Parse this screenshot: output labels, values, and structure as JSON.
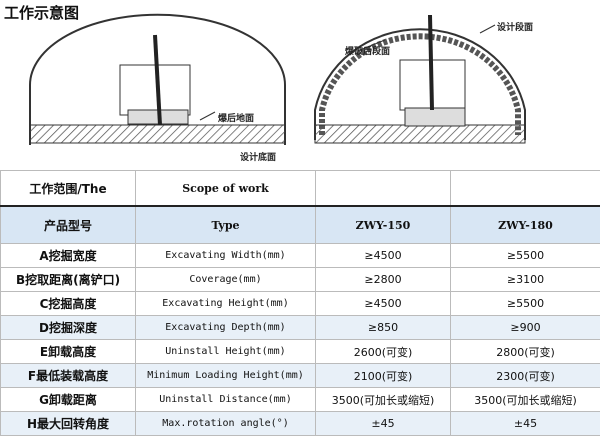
{
  "title": "工作示意图",
  "diagram": {
    "left_labels": [
      "爆后地面",
      "设计底面"
    ],
    "right_labels": [
      "设计段面",
      "爆破后段面"
    ]
  },
  "table": {
    "caption": [
      "工作范围/The",
      "Scope of work"
    ],
    "header": [
      "产品型号",
      "Type",
      "ZWY-150",
      "ZWY-180"
    ],
    "rows": [
      [
        "A挖掘宽度",
        "Excavating  Width(mm)",
        "≥4500",
        "≥5500"
      ],
      [
        "B挖取距离(离铲口)",
        "Coverage(mm)",
        "≥2800",
        "≥3100"
      ],
      [
        "C挖掘高度",
        "Excavating  Height(mm)",
        "≥4500",
        "≥5500"
      ],
      [
        "D挖掘深度",
        "Excavating  Depth(mm)",
        "≥850",
        "≥900"
      ],
      [
        "E卸载高度",
        "Uninstall  Height(mm)",
        "2600(可变)",
        "2800(可变)"
      ],
      [
        "F最低装载高度",
        "Minimum Loading Height(mm)",
        "2100(可变)",
        "2300(可变)"
      ],
      [
        "G卸载距离",
        "Uninstall  Distance(mm)",
        "3500(可加长或缩短)",
        "3500(可加长或缩短)"
      ],
      [
        "H最大回转角度",
        "Max.rotation  angle(°)",
        "±45",
        "±45"
      ]
    ]
  }
}
